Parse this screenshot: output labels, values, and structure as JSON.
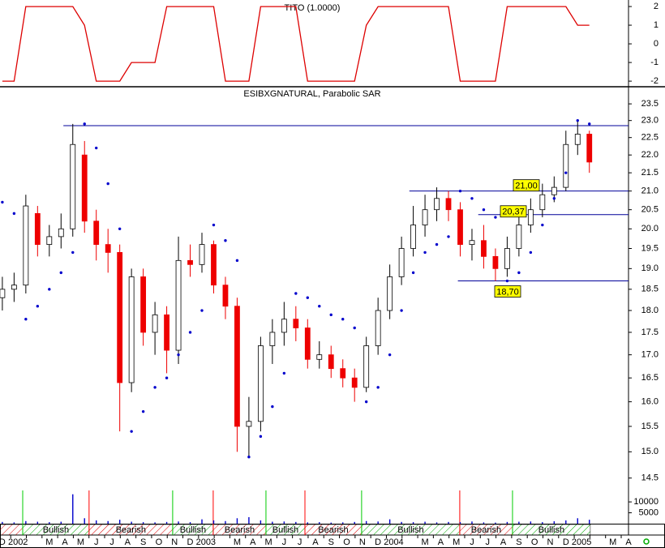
{
  "chart_data": [
    {
      "type": "line",
      "title": "TITO (1.0000)",
      "x": [
        0,
        0.75,
        1.5,
        2.25,
        3,
        3.75,
        4.5,
        5.25,
        6,
        6.75,
        7.5,
        8.25,
        9,
        9.75,
        10.5,
        11.25,
        12,
        12.75,
        13.5,
        14.25,
        15,
        15.75,
        16.5,
        17.25,
        18,
        18.75,
        19.5,
        20.25,
        21,
        21.75,
        22.5,
        23.25,
        24,
        24.75,
        25.5,
        26.25,
        27,
        27.75,
        28.5,
        29.25,
        30,
        30.75,
        31.5,
        32.25,
        33,
        33.75,
        34.5,
        35.25,
        36,
        36.75,
        37.5
      ],
      "series": [
        {
          "color": "#dd0000",
          "values": [
            -2,
            -2,
            2,
            2,
            2,
            2,
            2,
            1,
            -2,
            -2,
            -2,
            -1,
            -1,
            -1,
            2,
            2,
            2,
            2,
            2,
            -2,
            -2,
            -2,
            2,
            2,
            2,
            2,
            -2,
            -2,
            -2,
            -2,
            -2,
            1,
            2,
            2,
            2,
            2,
            2,
            2,
            2,
            -2,
            -2,
            -2,
            -2,
            2,
            2,
            2,
            2,
            2,
            2,
            1,
            1
          ]
        }
      ],
      "xlim": [
        -0.15,
        40
      ],
      "ylim": [
        -2.3,
        2.35
      ],
      "yticks": [
        2,
        1,
        0,
        -1,
        -2
      ]
    },
    {
      "type": "candlestick",
      "title": "ESIBXGNATURAL, Parabolic SAR",
      "x": [
        0,
        0.75,
        1.5,
        2.25,
        3,
        3.75,
        4.5,
        5.25,
        6,
        6.75,
        7.5,
        8.25,
        9,
        9.75,
        10.5,
        11.25,
        12,
        12.75,
        13.5,
        14.25,
        15,
        15.75,
        16.5,
        17.25,
        18,
        18.75,
        19.5,
        20.25,
        21,
        21.75,
        22.5,
        23.25,
        24,
        24.75,
        25.5,
        26.25,
        27,
        27.75,
        28.5,
        29.25,
        30,
        30.75,
        31.5,
        32.25,
        33,
        33.75,
        34.5,
        35.25,
        36,
        36.75,
        37.5
      ],
      "open": [
        18.3,
        18.5,
        18.6,
        20.4,
        19.6,
        19.8,
        20.0,
        22.0,
        20.2,
        19.6,
        19.4,
        16.4,
        18.8,
        17.5,
        17.9,
        17.1,
        19.2,
        19.1,
        19.6,
        18.6,
        18.1,
        15.5,
        15.6,
        17.2,
        17.5,
        17.8,
        17.6,
        16.9,
        17.0,
        16.7,
        16.5,
        16.3,
        17.2,
        18.0,
        18.8,
        19.5,
        20.1,
        20.5,
        20.8,
        20.5,
        19.6,
        19.7,
        19.3,
        19.0,
        19.5,
        20.1,
        20.5,
        20.9,
        21.1,
        22.3,
        22.6
      ],
      "high": [
        18.8,
        18.9,
        20.9,
        20.6,
        20.1,
        20.4,
        22.9,
        22.4,
        20.5,
        20.0,
        19.6,
        19.0,
        19.0,
        18.2,
        18.1,
        19.8,
        19.6,
        19.9,
        19.7,
        18.8,
        18.3,
        16.1,
        17.4,
        17.8,
        18.2,
        18.1,
        17.8,
        17.3,
        17.2,
        16.9,
        16.7,
        17.4,
        18.3,
        19.1,
        19.8,
        20.6,
        20.9,
        21.1,
        21.0,
        20.7,
        20.0,
        20.1,
        19.5,
        19.8,
        20.4,
        20.8,
        21.2,
        21.4,
        22.7,
        23.0,
        22.7
      ],
      "low": [
        18.0,
        18.2,
        18.4,
        19.3,
        19.3,
        19.5,
        19.8,
        19.9,
        19.2,
        18.9,
        15.4,
        16.2,
        17.2,
        17.0,
        16.6,
        16.8,
        18.8,
        18.9,
        18.4,
        17.8,
        15.0,
        14.9,
        15.4,
        16.8,
        17.2,
        17.3,
        16.7,
        16.7,
        16.5,
        16.3,
        16.0,
        16.2,
        17.0,
        17.8,
        18.6,
        19.3,
        19.8,
        20.2,
        20.2,
        19.3,
        19.2,
        19.0,
        18.7,
        18.8,
        19.3,
        19.9,
        20.3,
        20.7,
        21.0,
        22.0,
        21.5
      ],
      "close": [
        18.5,
        18.6,
        20.6,
        19.6,
        19.8,
        20.0,
        22.3,
        20.2,
        19.6,
        19.4,
        16.4,
        18.8,
        17.5,
        17.9,
        17.1,
        19.2,
        19.1,
        19.6,
        18.6,
        18.1,
        15.5,
        15.6,
        17.2,
        17.5,
        17.8,
        17.6,
        16.9,
        17.0,
        16.7,
        16.5,
        16.3,
        17.2,
        18.0,
        18.8,
        19.5,
        20.1,
        20.5,
        20.8,
        20.5,
        19.6,
        19.7,
        19.3,
        19.0,
        19.5,
        20.1,
        20.5,
        20.9,
        21.1,
        22.3,
        22.6,
        21.8
      ],
      "up_color": "#ffffff",
      "down_color": "#ee0000",
      "sar": {
        "color": "#0000cc",
        "values": [
          20.7,
          20.4,
          17.8,
          18.1,
          18.5,
          18.9,
          19.4,
          22.9,
          22.2,
          21.2,
          20.0,
          15.4,
          15.8,
          16.3,
          16.5,
          17.0,
          17.5,
          18.0,
          20.1,
          19.7,
          19.2,
          14.9,
          15.3,
          15.9,
          16.6,
          18.4,
          18.3,
          18.1,
          17.9,
          17.8,
          17.6,
          16.0,
          16.3,
          17.0,
          18.0,
          18.9,
          19.4,
          19.6,
          19.8,
          21.0,
          20.8,
          20.5,
          20.3,
          18.7,
          18.9,
          19.4,
          20.1,
          20.8,
          21.5,
          23.0,
          22.9
        ]
      },
      "levels": [
        {
          "value": 22.85,
          "start": 3.9,
          "color": "#000099"
        },
        {
          "value": 21,
          "label": "21,00",
          "start": 26.0,
          "color": "#000099"
        },
        {
          "value": 20.37,
          "label": "20,37",
          "start": 30.4,
          "color": "#000099"
        },
        {
          "value": 18.7,
          "label": "18,70",
          "start": 29.1,
          "color": "#000099"
        }
      ],
      "log_scale": true,
      "xlim": [
        -0.15,
        40
      ],
      "ylim": [
        14.3,
        24.0
      ],
      "yticks": [
        14.5,
        {
          "value": 15,
          "label": "15.0"
        },
        15.5,
        {
          "value": 16,
          "label": "16.0"
        },
        16.5,
        {
          "value": 17,
          "label": "17.0"
        },
        17.5,
        {
          "value": 18,
          "label": "18.0"
        },
        18.5,
        {
          "value": 19,
          "label": "19.0"
        },
        19.5,
        {
          "value": 20,
          "label": "20.0"
        },
        20.5,
        {
          "value": 21,
          "label": "21.0"
        },
        21.5,
        {
          "value": 22,
          "label": "22.0"
        },
        22.5,
        {
          "value": 23,
          "label": "23.0"
        },
        23.5
      ]
    },
    {
      "type": "bar",
      "x": [
        0,
        0.75,
        1.5,
        2.25,
        3,
        3.75,
        4.5,
        5.25,
        6,
        6.75,
        7.5,
        8.25,
        9,
        9.75,
        10.5,
        11.25,
        12,
        12.75,
        13.5,
        14.25,
        15,
        15.75,
        16.5,
        17.25,
        18,
        18.75,
        19.5,
        20.25,
        21,
        21.75,
        22.5,
        23.25,
        24,
        24.75,
        25.5,
        26.25,
        27,
        27.75,
        28.5,
        29.25,
        30,
        30.75,
        31.5,
        32.25,
        33,
        33.75,
        34.5,
        35.25,
        36,
        36.75,
        37.5
      ],
      "values": [
        800,
        600,
        1200,
        900,
        700,
        900,
        13500,
        2500,
        1500,
        1200,
        1800,
        900,
        700,
        600,
        800,
        1000,
        700,
        2000,
        1500,
        1200,
        2500,
        3000,
        1500,
        900,
        1000,
        800,
        600,
        700,
        500,
        600,
        800,
        1200,
        1000,
        2000,
        800,
        700,
        900,
        600,
        800,
        700,
        1000,
        600,
        500,
        800,
        900,
        1000,
        700,
        1100,
        1500,
        2500,
        1800
      ],
      "color": "#0000cc",
      "xlim": [
        -0.15,
        40
      ],
      "ylim": [
        0,
        16000
      ],
      "yticks": [
        10000,
        5000
      ],
      "bands": [
        {
          "label": null,
          "start": -0.15,
          "end": 1.3,
          "color": "#dd0000"
        },
        {
          "label": "Bullish",
          "start": 1.3,
          "end": 5.54,
          "color": "#00aa00"
        },
        {
          "label": "Bearish",
          "start": 5.54,
          "end": 10.88,
          "color": "#dd0000"
        },
        {
          "label": "Bullish",
          "start": 10.88,
          "end": 13.47,
          "color": "#00aa00"
        },
        {
          "label": "Bearish",
          "start": 13.47,
          "end": 16.84,
          "color": "#dd0000"
        },
        {
          "label": "Bullish",
          "start": 16.84,
          "end": 19.33,
          "color": "#00aa00"
        },
        {
          "label": "Bearish",
          "start": 19.33,
          "end": 22.95,
          "color": "#dd0000"
        },
        {
          "label": "Bullish",
          "start": 22.95,
          "end": 29.22,
          "color": "#00aa00"
        },
        {
          "label": "Bearish",
          "start": 29.22,
          "end": 32.59,
          "color": "#dd0000"
        },
        {
          "label": "Bullish",
          "start": 32.59,
          "end": 37.56,
          "color": "#00aa00"
        }
      ],
      "categories": [
        "D",
        "2002",
        null,
        "M",
        "A",
        "M",
        "J",
        "J",
        "A",
        "S",
        "O",
        "N",
        "D",
        "2003",
        null,
        "M",
        "A",
        "M",
        "J",
        "J",
        "A",
        "S",
        "O",
        "N",
        "D",
        "2004",
        null,
        "M",
        "A",
        "M",
        "J",
        "J",
        "A",
        "S",
        "O",
        "N",
        "D",
        "2005",
        null,
        "M",
        "A"
      ]
    }
  ]
}
